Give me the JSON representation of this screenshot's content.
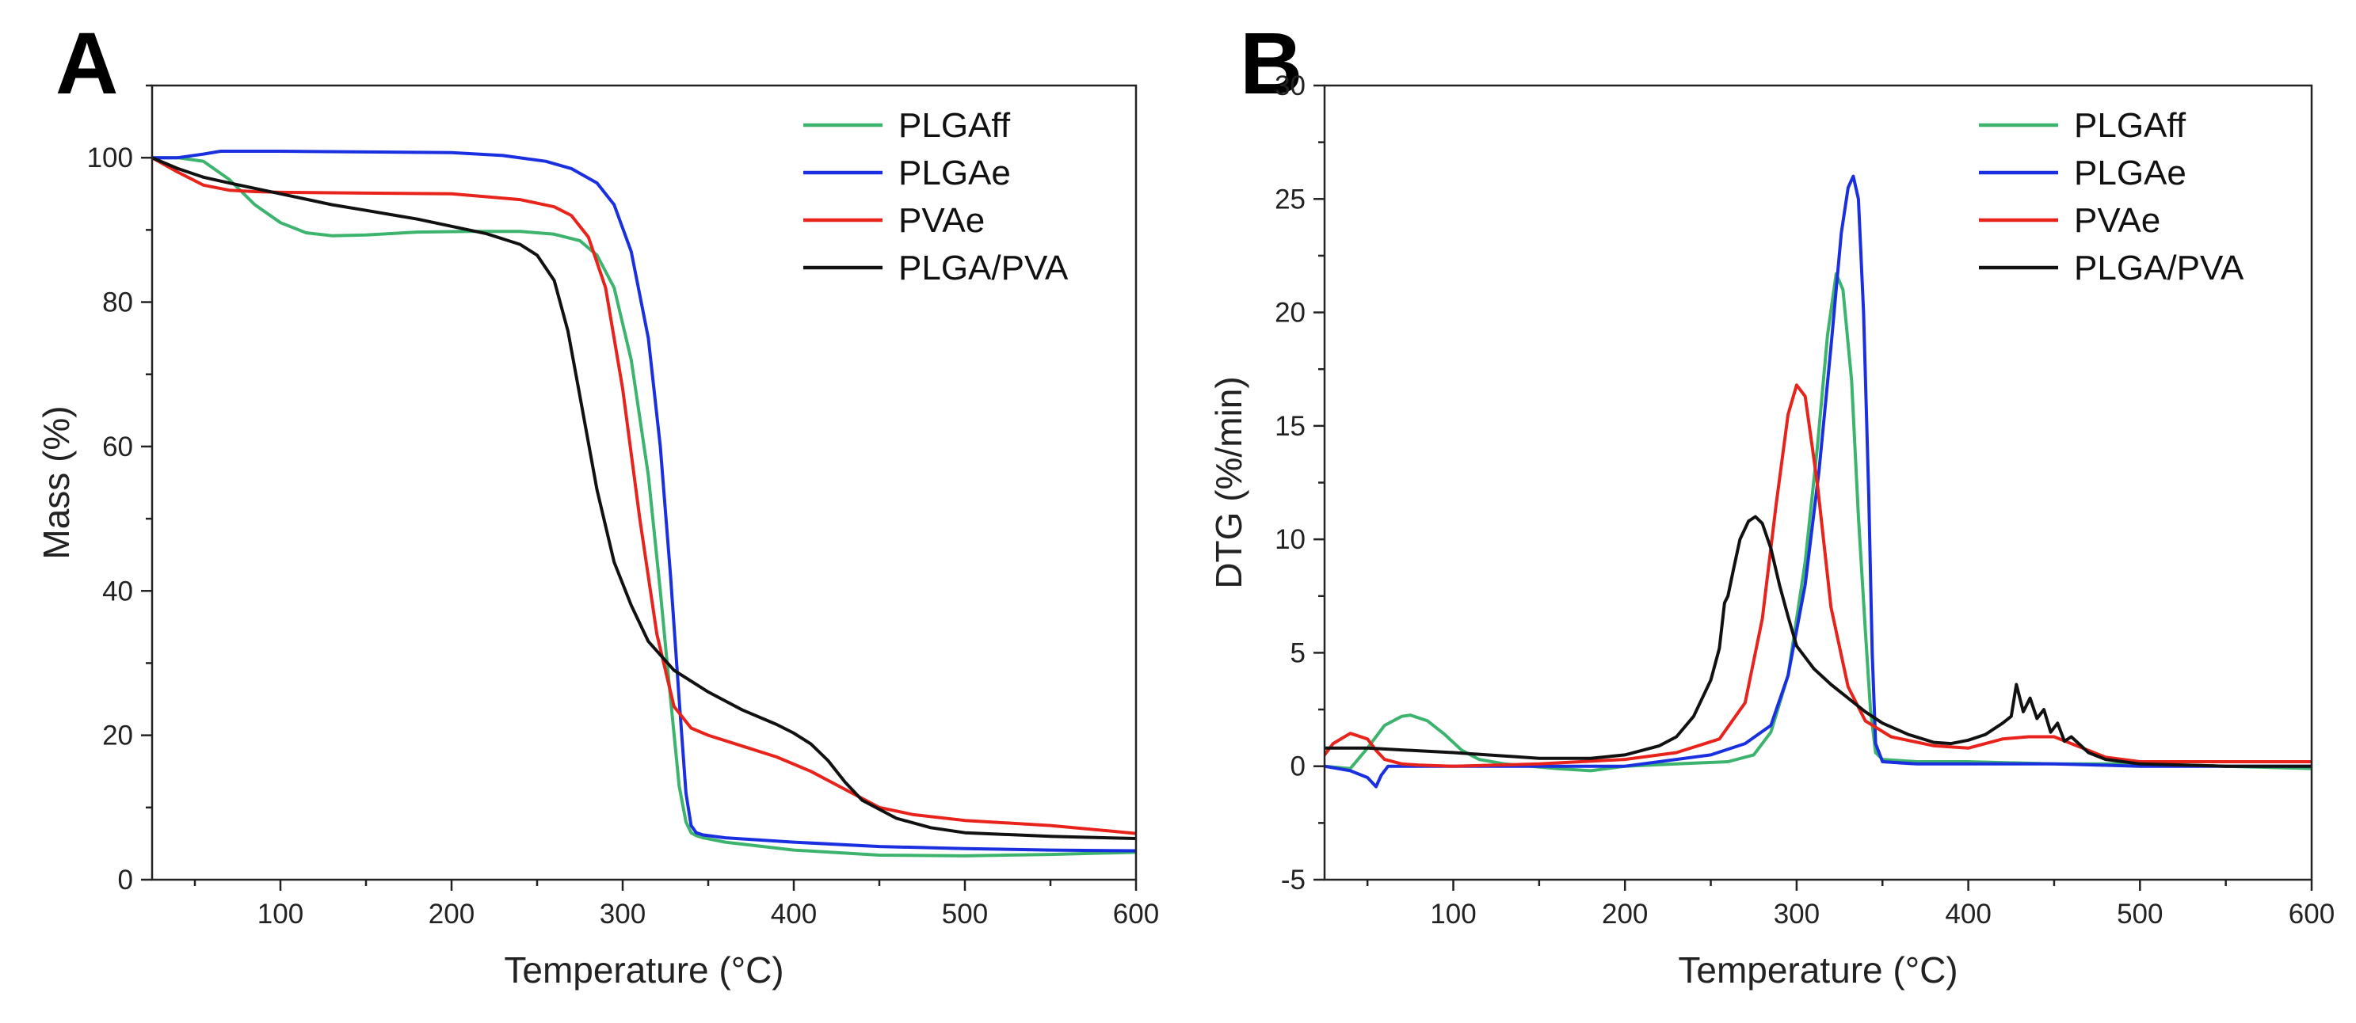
{
  "chart_data": [
    {
      "panel_label": "A",
      "type": "line",
      "xlabel": "Temperature (°C)",
      "ylabel": "Mass (%)",
      "xlim": [
        25,
        600
      ],
      "ylim": [
        0,
        110
      ],
      "xticks": [
        100,
        200,
        300,
        400,
        500,
        600
      ],
      "yticks": [
        0,
        20,
        40,
        60,
        80,
        100
      ],
      "legend_position": "top-right",
      "series": [
        {
          "name": "PLGAff",
          "color": "#3cb46e",
          "x": [
            25,
            40,
            55,
            70,
            85,
            100,
            115,
            130,
            150,
            180,
            210,
            240,
            260,
            275,
            285,
            295,
            305,
            315,
            322,
            328,
            333,
            337,
            340,
            343,
            347,
            360,
            400,
            450,
            500,
            550,
            600
          ],
          "y": [
            100,
            100,
            99.5,
            97,
            93.5,
            91,
            89.6,
            89.2,
            89.3,
            89.7,
            89.8,
            89.8,
            89.4,
            88.5,
            86.5,
            82,
            72,
            56,
            40,
            25,
            13,
            8,
            6.5,
            6.1,
            5.8,
            5.2,
            4.1,
            3.4,
            3.3,
            3.5,
            3.8
          ]
        },
        {
          "name": "PLGAe",
          "color": "#1a2fe0",
          "x": [
            25,
            40,
            55,
            65,
            80,
            100,
            150,
            200,
            230,
            255,
            270,
            285,
            295,
            305,
            315,
            322,
            328,
            333,
            337,
            340,
            343,
            347,
            360,
            400,
            450,
            500,
            550,
            600
          ],
          "y": [
            100,
            100,
            100.5,
            100.9,
            100.9,
            100.9,
            100.8,
            100.7,
            100.3,
            99.5,
            98.5,
            96.5,
            93.5,
            87,
            75,
            60,
            42,
            25,
            12,
            7.5,
            6.5,
            6.2,
            5.8,
            5.2,
            4.6,
            4.3,
            4.1,
            4.0
          ]
        },
        {
          "name": "PVAe",
          "color": "#e8231c",
          "x": [
            25,
            40,
            55,
            70,
            85,
            100,
            150,
            200,
            240,
            260,
            270,
            280,
            290,
            300,
            310,
            320,
            330,
            340,
            350,
            370,
            390,
            410,
            430,
            450,
            470,
            500,
            550,
            600
          ],
          "y": [
            100,
            98,
            96.2,
            95.5,
            95.3,
            95.2,
            95.1,
            95.0,
            94.2,
            93.2,
            92,
            89,
            82,
            68,
            50,
            34,
            24,
            21,
            20,
            18.5,
            17,
            15,
            12.5,
            10,
            9,
            8.2,
            7.5,
            6.4
          ]
        },
        {
          "name": "PLGA/PVA",
          "color": "#111111",
          "x": [
            25,
            40,
            55,
            70,
            90,
            110,
            130,
            150,
            180,
            200,
            220,
            240,
            250,
            260,
            268,
            275,
            285,
            295,
            305,
            315,
            330,
            350,
            370,
            390,
            400,
            410,
            420,
            430,
            440,
            460,
            480,
            500,
            550,
            600
          ],
          "y": [
            100,
            98.5,
            97.3,
            96.5,
            95.5,
            94.5,
            93.5,
            92.7,
            91.5,
            90.5,
            89.5,
            88,
            86.5,
            83,
            76,
            67,
            54,
            44,
            38,
            33,
            29,
            26,
            23.5,
            21.5,
            20.3,
            18.8,
            16.5,
            13.5,
            11,
            8.5,
            7.2,
            6.5,
            6.0,
            5.7
          ]
        }
      ]
    },
    {
      "panel_label": "B",
      "type": "line",
      "xlabel": "Temperature (°C)",
      "ylabel": "DTG (%/min)",
      "xlim": [
        25,
        600
      ],
      "ylim": [
        -5,
        30
      ],
      "xticks": [
        100,
        200,
        300,
        400,
        500,
        600
      ],
      "yticks": [
        -5,
        0,
        5,
        10,
        15,
        20,
        25,
        30
      ],
      "legend_position": "top-right",
      "series": [
        {
          "name": "PLGAff",
          "color": "#3cb46e",
          "x": [
            25,
            40,
            50,
            60,
            70,
            75,
            85,
            95,
            105,
            115,
            130,
            160,
            180,
            200,
            230,
            260,
            275,
            285,
            295,
            305,
            312,
            318,
            323,
            327,
            332,
            336,
            340,
            343,
            346,
            350,
            370,
            400,
            450,
            500,
            550,
            600
          ],
          "y": [
            0,
            -0.1,
            0.8,
            1.8,
            2.2,
            2.25,
            2.0,
            1.4,
            0.7,
            0.3,
            0.1,
            -0.1,
            -0.2,
            0,
            0.1,
            0.2,
            0.5,
            1.5,
            4,
            9,
            14,
            19,
            21.7,
            21,
            17,
            11,
            6,
            2.5,
            0.6,
            0.3,
            0.2,
            0.2,
            0.1,
            0.1,
            0,
            -0.1
          ]
        },
        {
          "name": "PLGAe",
          "color": "#1a2fe0",
          "x": [
            25,
            40,
            50,
            55,
            58,
            62,
            70,
            80,
            100,
            150,
            200,
            250,
            270,
            285,
            295,
            305,
            313,
            320,
            326,
            330,
            333,
            336,
            339,
            342,
            344,
            346,
            350,
            370,
            400,
            450,
            500,
            550,
            600
          ],
          "y": [
            0,
            -0.2,
            -0.5,
            -0.9,
            -0.4,
            0,
            0,
            0,
            0,
            0,
            0,
            0.5,
            1.0,
            1.8,
            4,
            8,
            13,
            18.5,
            23.5,
            25.5,
            26,
            25,
            20,
            12,
            5,
            1,
            0.2,
            0.1,
            0.1,
            0.1,
            0,
            0,
            0
          ]
        },
        {
          "name": "PVAe",
          "color": "#e8231c",
          "x": [
            25,
            30,
            40,
            50,
            55,
            60,
            70,
            80,
            100,
            150,
            200,
            230,
            255,
            270,
            280,
            288,
            295,
            300,
            305,
            312,
            320,
            330,
            340,
            355,
            380,
            400,
            410,
            420,
            435,
            450,
            460,
            480,
            500,
            550,
            600
          ],
          "y": [
            0.5,
            1.0,
            1.45,
            1.2,
            0.7,
            0.3,
            0.1,
            0.05,
            0,
            0.1,
            0.3,
            0.6,
            1.2,
            2.8,
            6.5,
            11.5,
            15.5,
            16.8,
            16.3,
            12.5,
            7,
            3.5,
            2.0,
            1.3,
            0.9,
            0.8,
            1.0,
            1.2,
            1.3,
            1.3,
            1.0,
            0.4,
            0.2,
            0.2,
            0.2
          ]
        },
        {
          "name": "PLGA/PVA",
          "color": "#111111",
          "x": [
            25,
            50,
            100,
            150,
            180,
            200,
            210,
            220,
            230,
            240,
            250,
            255,
            258,
            260,
            263,
            267,
            272,
            276,
            280,
            285,
            290,
            295,
            300,
            310,
            320,
            330,
            340,
            350,
            365,
            380,
            390,
            400,
            410,
            420,
            425,
            428,
            432,
            436,
            440,
            444,
            448,
            452,
            456,
            460,
            470,
            480,
            500,
            550,
            600
          ],
          "y": [
            0.8,
            0.8,
            0.6,
            0.35,
            0.35,
            0.5,
            0.7,
            0.9,
            1.3,
            2.2,
            3.8,
            5.2,
            7.2,
            7.5,
            8.6,
            10,
            10.8,
            11,
            10.7,
            9.6,
            8,
            6.6,
            5.3,
            4.3,
            3.6,
            3.0,
            2.4,
            1.9,
            1.4,
            1.05,
            1.0,
            1.15,
            1.4,
            1.9,
            2.2,
            3.6,
            2.4,
            3.0,
            2.1,
            2.5,
            1.5,
            1.9,
            1.1,
            1.3,
            0.6,
            0.3,
            0.1,
            0,
            0
          ]
        }
      ]
    }
  ]
}
